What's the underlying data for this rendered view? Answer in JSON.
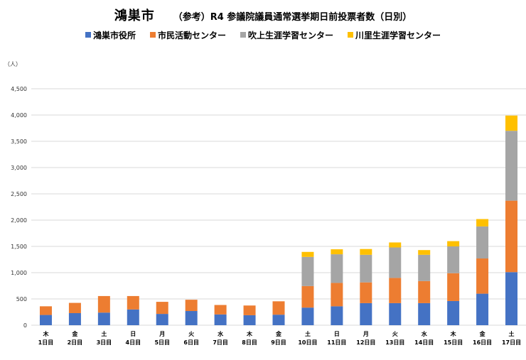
{
  "title": {
    "main": "鴻巣市",
    "sub": "（参考）R4 参議院議員通常選挙期日前投票者数（日別）"
  },
  "colors": {
    "s1": "#4472C4",
    "s2": "#ED7D31",
    "s3": "#A5A5A5",
    "s4": "#FFC000",
    "grid": "#D9D9D9"
  },
  "chart_data": {
    "type": "bar",
    "stacked": true,
    "ylabel": "（人）",
    "ylim": [
      0,
      4500
    ],
    "yticks": [
      0,
      500,
      1000,
      1500,
      2000,
      2500,
      3000,
      3500,
      4000,
      4500
    ],
    "ytick_labels": [
      "0",
      "500",
      "1,000",
      "1,500",
      "2,000",
      "2,500",
      "3,000",
      "3,500",
      "4,000",
      "4,500"
    ],
    "grid": true,
    "legend": "top",
    "weekdays": [
      "木",
      "金",
      "土",
      "日",
      "月",
      "火",
      "水",
      "木",
      "金",
      "土",
      "日",
      "月",
      "火",
      "水",
      "木",
      "金",
      "土"
    ],
    "categories": [
      "1日目",
      "2日目",
      "3日目",
      "4日目",
      "5日目",
      "6日目",
      "7日目",
      "8日目",
      "9日目",
      "10日目",
      "11日目",
      "12日目",
      "13日目",
      "14日目",
      "15日目",
      "16日目",
      "17日目"
    ],
    "series": [
      {
        "name": "鴻巣市役所",
        "values": [
          195,
          230,
          240,
          300,
          215,
          270,
          205,
          190,
          200,
          335,
          360,
          420,
          420,
          420,
          460,
          600,
          1010
        ]
      },
      {
        "name": "市民活動センター",
        "values": [
          165,
          195,
          315,
          255,
          230,
          215,
          180,
          185,
          255,
          410,
          445,
          395,
          480,
          420,
          530,
          670,
          1360
        ]
      },
      {
        "name": "吹上生涯学習センター",
        "values": [
          0,
          0,
          0,
          0,
          0,
          0,
          0,
          0,
          0,
          555,
          545,
          525,
          580,
          500,
          510,
          610,
          1330
        ]
      },
      {
        "name": "川里生涯学習センター",
        "values": [
          0,
          0,
          0,
          0,
          0,
          0,
          0,
          0,
          0,
          95,
          95,
          110,
          95,
          90,
          100,
          140,
          290
        ]
      }
    ]
  }
}
